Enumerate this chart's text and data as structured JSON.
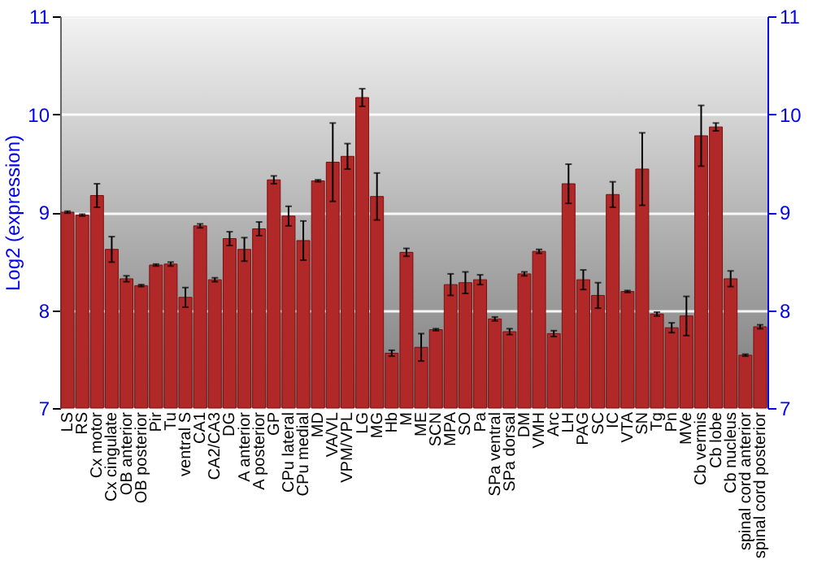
{
  "chart_data": {
    "type": "bar",
    "ylabel": "Log2 (expression)",
    "categories": [
      "LS",
      "RS",
      "Cx motor",
      "Cx cingulate",
      "OB anterior",
      "OB posterior",
      "Pir",
      "Tu",
      "ventral S",
      "CA1",
      "CA2/CA3",
      "DG",
      "A anterior",
      "A posterior",
      "GP",
      "CPu lateral",
      "CPu medial",
      "MD",
      "VA/VL",
      "VPM/VPL",
      "LG",
      "MG",
      "Hb",
      "M",
      "ME",
      "SCN",
      "MPA",
      "SO",
      "Pa",
      "SPa ventral",
      "SPa dorsal",
      "DM",
      "VMH",
      "Arc",
      "LH",
      "PAG",
      "SC",
      "IC",
      "VTA",
      "SN",
      "Tg",
      "Pn",
      "MVe",
      "Cb vermis",
      "Cb lobe",
      "Cb nucleus",
      "spinal cord anterior",
      "spinal cord posterior"
    ],
    "series": [
      {
        "color": "#b02828",
        "values": [
          9.0,
          8.97,
          9.17,
          8.62,
          8.32,
          8.25,
          8.46,
          8.47,
          8.13,
          8.86,
          8.31,
          8.73,
          8.62,
          8.83,
          9.33,
          8.96,
          8.71,
          9.32,
          9.51,
          9.57,
          10.17,
          9.16,
          7.56,
          8.59,
          7.62,
          7.8,
          8.26,
          8.28,
          8.31,
          7.91,
          7.78,
          8.37,
          8.6,
          7.76,
          9.29,
          8.31,
          8.15,
          9.18,
          8.19,
          9.44,
          7.96,
          7.82,
          7.94,
          9.78,
          9.87,
          8.32,
          7.54,
          7.83
        ],
        "errors": [
          0.01,
          0.01,
          0.12,
          0.13,
          0.03,
          0.01,
          0.01,
          0.02,
          0.1,
          0.02,
          0.02,
          0.07,
          0.12,
          0.07,
          0.04,
          0.1,
          0.2,
          0.01,
          0.4,
          0.13,
          0.09,
          0.24,
          0.03,
          0.04,
          0.14,
          0.01,
          0.11,
          0.11,
          0.05,
          0.02,
          0.03,
          0.02,
          0.02,
          0.03,
          0.2,
          0.1,
          0.13,
          0.13,
          0.01,
          0.37,
          0.02,
          0.05,
          0.2,
          0.31,
          0.04,
          0.08,
          0.01,
          0.02
        ]
      }
    ],
    "ylim": [
      7,
      11
    ],
    "yticks": [
      7,
      8,
      9,
      10,
      11
    ],
    "y2lim": [
      7,
      11
    ],
    "y2ticks": [
      7,
      8,
      9,
      10,
      11
    ],
    "grid": "y"
  }
}
